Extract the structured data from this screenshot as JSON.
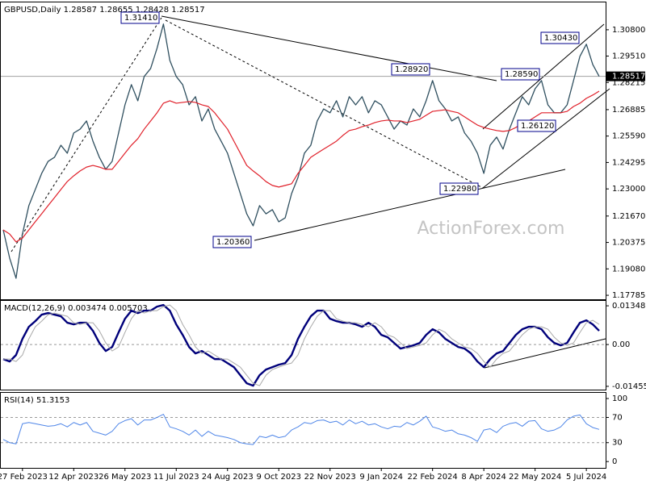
{
  "chart_data": [
    {
      "type": "line",
      "title": "GBPUSD,Daily  1.28587 1.28655 1.28428 1.28517",
      "watermark": "ActionForex.com",
      "annotations": [
        "1.31410",
        "1.28920",
        "1.28590",
        "1.30430",
        "1.26120",
        "1.22980",
        "1.20360"
      ],
      "last_price": 1.28517,
      "categories": [
        null,
        null,
        null,
        "27 Feb 2023",
        null,
        null,
        null,
        null,
        null,
        null,
        null,
        "12 Apr 2023",
        null,
        null,
        null,
        null,
        null,
        null,
        null,
        "26 May 2023",
        null,
        null,
        null,
        null,
        null,
        null,
        null,
        "11 Jul 2023",
        null,
        null,
        null,
        null,
        null,
        null,
        null,
        "24 Aug 2023",
        null,
        null,
        null,
        null,
        null,
        null,
        null,
        "9 Oct 2023",
        null,
        null,
        null,
        null,
        null,
        null,
        null,
        "22 Nov 2023",
        null,
        null,
        null,
        null,
        null,
        null,
        null,
        "9 Jan 2024",
        null,
        null,
        null,
        null,
        null,
        null,
        null,
        "22 Feb 2024",
        null,
        null,
        null,
        null,
        null,
        null,
        null,
        "8 Apr 2024",
        null,
        null,
        null,
        null,
        null,
        null,
        null,
        "22 May 2024",
        null,
        null,
        null,
        null,
        null,
        null,
        null,
        "5 Jul 2024",
        null,
        null
      ],
      "series": [
        {
          "color": "#2f4f5f",
          "values": [
            1.2099,
            1.1961,
            1.1862,
            1.2079,
            1.2218,
            1.2297,
            1.2376,
            1.2435,
            1.2455,
            1.2514,
            1.2475,
            1.2574,
            1.2593,
            1.2633,
            1.2534,
            1.2455,
            1.2396,
            1.2435,
            1.2574,
            1.2712,
            1.2811,
            1.2732,
            1.2851,
            1.289,
            1.2989,
            1.3108,
            1.293,
            1.2851,
            1.2811,
            1.2712,
            1.2752,
            1.2633,
            1.2692,
            1.2593,
            1.2534,
            1.2475,
            1.2376,
            1.2277,
            1.2178,
            1.2119,
            1.2218,
            1.2178,
            1.2198,
            1.2139,
            1.2158,
            1.2277,
            1.2356,
            1.2475,
            1.2514,
            1.2633,
            1.2692,
            1.2673,
            1.2732,
            1.2653,
            1.2752,
            1.2712,
            1.2752,
            1.2673,
            1.2732,
            1.2712,
            1.2653,
            1.2593,
            1.2633,
            1.2613,
            1.2692,
            1.2653,
            1.2732,
            1.2831,
            1.2732,
            1.2692,
            1.2633,
            1.2653,
            1.2574,
            1.2534,
            1.2475,
            1.2376,
            1.2514,
            1.2554,
            1.2495,
            1.2593,
            1.2673,
            1.2752,
            1.2712,
            1.2791,
            1.2831,
            1.2712,
            1.2673,
            1.2673,
            1.2712,
            1.2831,
            1.295,
            1.3009,
            1.291,
            1.28517
          ]
        },
        {
          "color": "#e0202a",
          "values": [
            1.2099,
            1.2079,
            1.204,
            1.2059,
            1.2099,
            1.2139,
            1.2178,
            1.2218,
            1.2257,
            1.2297,
            1.2336,
            1.2364,
            1.2388,
            1.2407,
            1.2415,
            1.2407,
            1.2396,
            1.2396,
            1.2435,
            1.2475,
            1.2514,
            1.2546,
            1.2593,
            1.2633,
            1.2673,
            1.272,
            1.2732,
            1.272,
            1.2724,
            1.2728,
            1.2724,
            1.2712,
            1.2704,
            1.2673,
            1.2633,
            1.2593,
            1.2534,
            1.2475,
            1.2415,
            1.2388,
            1.2364,
            1.2336,
            1.2317,
            1.2309,
            1.2317,
            1.2325,
            1.2376,
            1.2415,
            1.2455,
            1.2475,
            1.2495,
            1.2514,
            1.2534,
            1.2562,
            1.2586,
            1.2593,
            1.2605,
            1.2613,
            1.2625,
            1.2633,
            1.2637,
            1.2633,
            1.2633,
            1.2625,
            1.2633,
            1.2641,
            1.2661,
            1.268,
            1.2684,
            1.2688,
            1.268,
            1.2673,
            1.2653,
            1.2633,
            1.2613,
            1.2601,
            1.2593,
            1.2586,
            1.2582,
            1.2586,
            1.2601,
            1.2621,
            1.2633,
            1.2653,
            1.2673,
            1.2673,
            1.2673,
            1.2673,
            1.268,
            1.2704,
            1.272,
            1.2744,
            1.276,
            1.2779
          ]
        }
      ],
      "ylim": [
        1.1759,
        1.3214
      ],
      "yticks": [
        {
          "value": 1.308,
          "label": "1.30800"
        },
        {
          "value": 1.2951,
          "label": "1.29510"
        },
        1.28215,
        1.26885,
        {
          "value": 1.2559,
          "label": "1.25590"
        },
        1.24295,
        {
          "value": 1.23,
          "label": "1.23000"
        },
        {
          "value": 1.2167,
          "label": "1.21670"
        },
        1.20375,
        {
          "value": 1.1908,
          "label": "1.19080"
        },
        1.17785
      ]
    },
    {
      "type": "line",
      "title": "MACD(12,26,9) 0.003474 0.005703",
      "series": [
        {
          "color": "#00007a",
          "values": [
            -0.00506,
            -0.0059,
            -0.00365,
            0.00197,
            0.00618,
            0.00815,
            0.0104,
            0.01096,
            0.0104,
            0.00984,
            0.00759,
            0.00702,
            0.00759,
            0.00759,
            0.00478,
            0.00056,
            -0.00225,
            -0.00084,
            0.00422,
            0.00899,
            0.0118,
            0.01096,
            0.0118,
            0.0118,
            0.0132,
            0.01377,
            0.0118,
            0.00702,
            0.00337,
            -0.00084,
            -0.00309,
            -0.00225,
            -0.00365,
            -0.00506,
            -0.00506,
            -0.00646,
            -0.00787,
            -0.01068,
            -0.01349,
            -0.01433,
            -0.01068,
            -0.00871,
            -0.00787,
            -0.00703,
            -0.00646,
            -0.00365,
            0.00197,
            0.00618,
            0.00984,
            0.0118,
            0.0118,
            0.00899,
            0.00815,
            0.00759,
            0.00759,
            0.00702,
            0.00618,
            0.00759,
            0.00618,
            0.00337,
            0.00253,
            0.00056,
            -0.00141,
            -0.00084,
            -0.00028,
            0.00056,
            0.00337,
            0.00534,
            0.00422,
            0.00197,
            0.00056,
            -0.00084,
            -0.00141,
            -0.00309,
            -0.0059,
            -0.00787,
            -0.00506,
            -0.00309,
            -0.00225,
            0.00056,
            0.00337,
            0.00534,
            0.00618,
            0.00618,
            0.00534,
            0.00253,
            0.00056,
            -0.00028,
            0.00056,
            0.00422,
            0.00759,
            0.00843,
            0.00702,
            0.00478
          ]
        },
        {
          "color": "#a9a9a9",
          "values": [
            -0.00506,
            -0.00506,
            -0.0059,
            -0.00365,
            0.00197,
            0.00618,
            0.00815,
            0.0104,
            0.01096,
            0.0104,
            0.00984,
            0.00759,
            0.00702,
            0.00759,
            0.00759,
            0.00478,
            0.00056,
            -0.00225,
            -0.00084,
            0.00422,
            0.00899,
            0.0118,
            0.01096,
            0.0118,
            0.0118,
            0.0132,
            0.01377,
            0.0118,
            0.00702,
            0.00337,
            -0.00084,
            -0.00309,
            -0.00225,
            -0.00365,
            -0.00506,
            -0.00506,
            -0.00646,
            -0.00787,
            -0.01068,
            -0.01349,
            -0.01433,
            -0.01068,
            -0.00871,
            -0.00787,
            -0.00703,
            -0.00646,
            -0.00365,
            0.00197,
            0.00618,
            0.00984,
            0.0118,
            0.0118,
            0.00899,
            0.00815,
            0.00759,
            0.00759,
            0.00702,
            0.00618,
            0.00759,
            0.00618,
            0.00337,
            0.00253,
            0.00056,
            -0.00141,
            -0.00084,
            -0.00028,
            0.00056,
            0.00337,
            0.00534,
            0.00422,
            0.00197,
            0.00056,
            -0.00084,
            -0.00141,
            -0.00309,
            -0.0059,
            -0.00787,
            -0.00506,
            -0.00309,
            -0.00225,
            0.00056,
            0.00337,
            0.00534,
            0.00618,
            0.00618,
            0.00534,
            0.00253,
            0.00056,
            -0.00028,
            0.00056,
            0.00422,
            0.00759,
            0.00843,
            0.00702
          ]
        }
      ],
      "ylim": [
        -0.0157,
        0.0152
      ],
      "yticks": [
        0.013489,
        {
          "value": 0,
          "label": "0.00"
        },
        -0.014554
      ],
      "levels": [
        0
      ]
    },
    {
      "type": "line",
      "title": "RSI(14) 51.3153",
      "series": [
        {
          "color": "#4f86e8",
          "values": [
            35,
            30,
            28,
            60,
            62,
            60,
            58,
            56,
            57,
            60,
            55,
            62,
            58,
            62,
            48,
            45,
            42,
            48,
            60,
            65,
            68,
            58,
            66,
            66,
            70,
            75,
            55,
            52,
            48,
            42,
            50,
            40,
            48,
            42,
            40,
            38,
            35,
            30,
            28,
            27,
            40,
            38,
            42,
            38,
            40,
            50,
            55,
            62,
            60,
            65,
            66,
            62,
            64,
            58,
            66,
            60,
            64,
            58,
            60,
            55,
            52,
            56,
            55,
            62,
            58,
            64,
            72,
            55,
            52,
            48,
            50,
            44,
            42,
            38,
            32,
            50,
            52,
            46,
            56,
            60,
            62,
            56,
            64,
            65,
            52,
            48,
            50,
            55,
            66,
            72,
            74,
            60,
            54,
            51
          ]
        }
      ],
      "ylim": [
        -10,
        109
      ],
      "yticks": [
        100,
        70,
        30,
        0
      ],
      "levels": [
        70,
        30
      ]
    }
  ]
}
